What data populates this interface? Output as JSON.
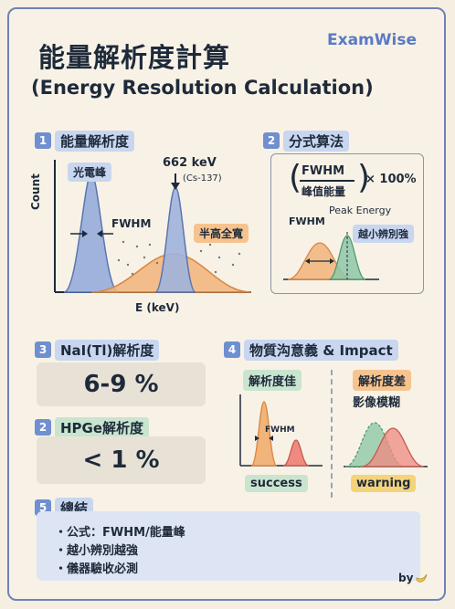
{
  "brand": "ExamWise",
  "title_zh": "能量解析度計算",
  "title_en": "(Energy Resolution Calculation)",
  "section1": {
    "num": "1",
    "title": "能量解析度",
    "photopeak_label": "光電峰",
    "fwhm_label": "FWHM",
    "peak_energy": "662 keV",
    "isotope": "(Cs-137)",
    "half_max_label": "半高全寬",
    "y_axis": "Count",
    "x_axis": "E (keV)"
  },
  "section2": {
    "num": "2",
    "title": "分式算法",
    "numerator": "FWHM",
    "denominator": "峰值能量",
    "times": "× 100%",
    "fwhm_label": "FWHM",
    "peak_energy_label": "Peak Energy",
    "better_label": "越小辨別強"
  },
  "nai": {
    "num": "3",
    "title": "NaI(Tl)解析度",
    "value": "6-9 %"
  },
  "hpge": {
    "num": "2",
    "title": "HPGe解析度",
    "value": "< 1 %"
  },
  "section4": {
    "num": "4",
    "title": "物質沟意義 & Impact",
    "good_label": "解析度佳",
    "fwhm_label": "FWHM",
    "success_label": "success",
    "bad_label": "解析度差",
    "blur_label": "影像模糊",
    "warning_label": "warning"
  },
  "summary": {
    "num": "5",
    "title": "總結",
    "items": [
      "・公式：FWHM/能量峰",
      "・越小辨別越強",
      "・儀器驗收必測"
    ]
  },
  "by": "by"
}
